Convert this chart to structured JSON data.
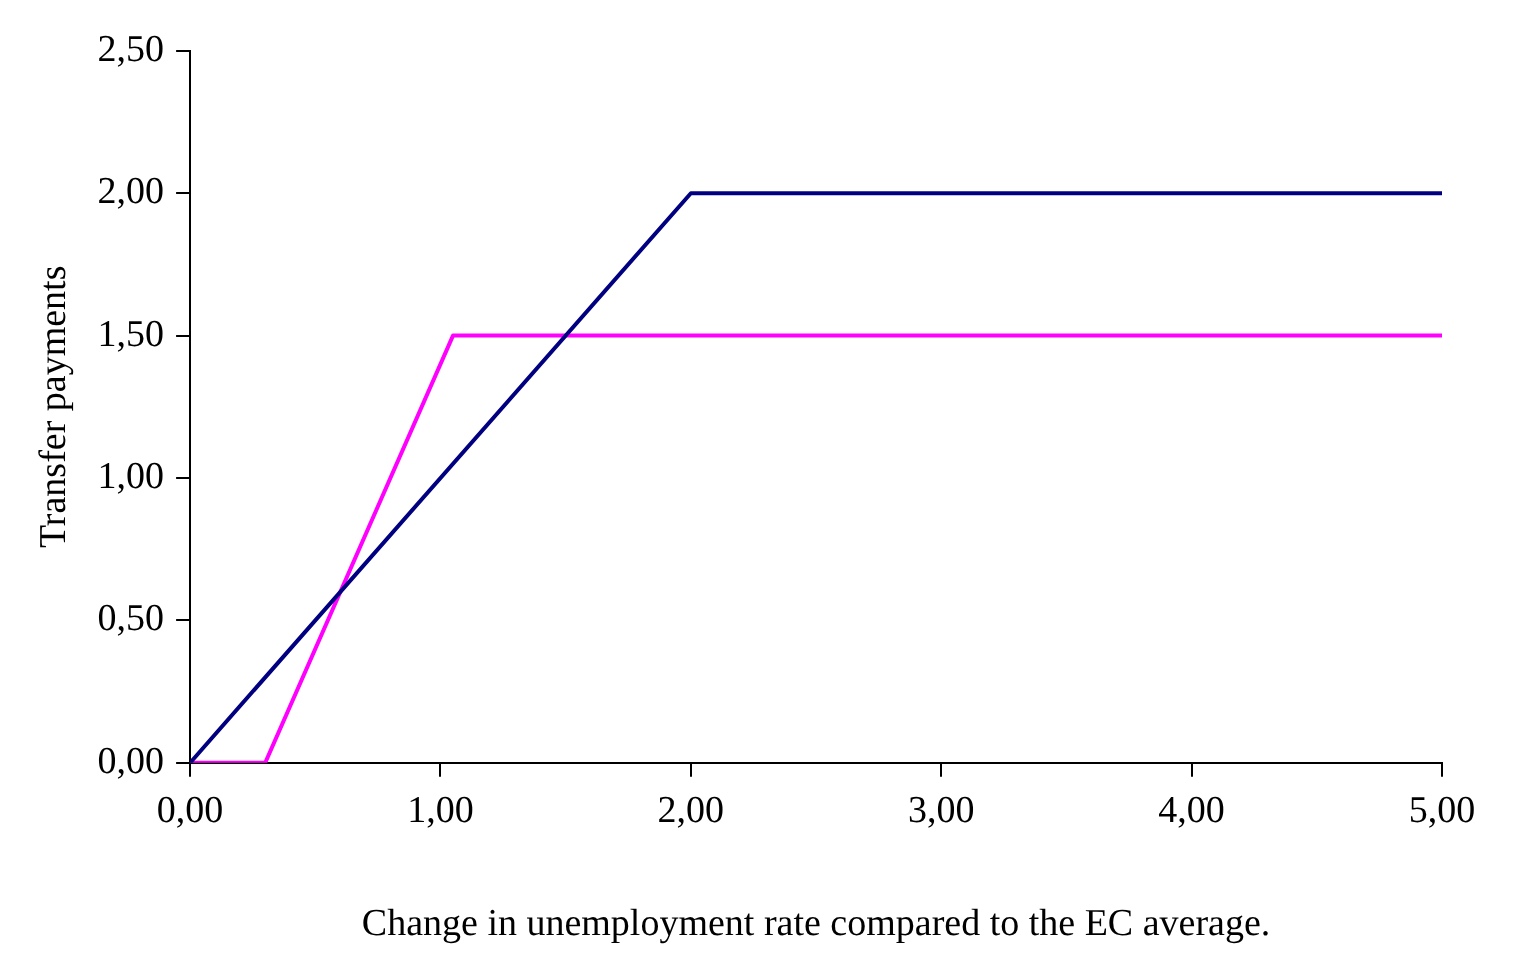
{
  "chart_data": {
    "type": "line",
    "xlabel": "Change in unemployment rate compared to the EC average.",
    "ylabel": "Transfer payments",
    "xlim": [
      0,
      5
    ],
    "xticks": [
      {
        "value": 0,
        "label": "0,00"
      },
      {
        "value": 1,
        "label": "1,00"
      },
      {
        "value": 2,
        "label": "2,00"
      },
      {
        "value": 3,
        "label": "3,00"
      },
      {
        "value": 4,
        "label": "4,00"
      },
      {
        "value": 5,
        "label": "5,00"
      }
    ],
    "ylim": [
      0,
      2.5
    ],
    "yticks": [
      {
        "value": 0,
        "label": "0,00"
      },
      {
        "value": 0.5,
        "label": "0,50"
      },
      {
        "value": 1,
        "label": "1,00"
      },
      {
        "value": 1.5,
        "label": "1,50"
      },
      {
        "value": 2,
        "label": "2,00"
      },
      {
        "value": 2.5,
        "label": "2,50"
      }
    ],
    "grid": false,
    "legend": false,
    "marker": "none",
    "line_style": "solid",
    "series": [
      {
        "color": "#000080",
        "x": [
          0,
          2,
          5
        ],
        "values": [
          0,
          2,
          2
        ]
      },
      {
        "color": "#ff00ff",
        "x": [
          0,
          0.3,
          1.05,
          5
        ],
        "values": [
          0,
          0,
          1.5,
          1.5
        ]
      }
    ]
  }
}
